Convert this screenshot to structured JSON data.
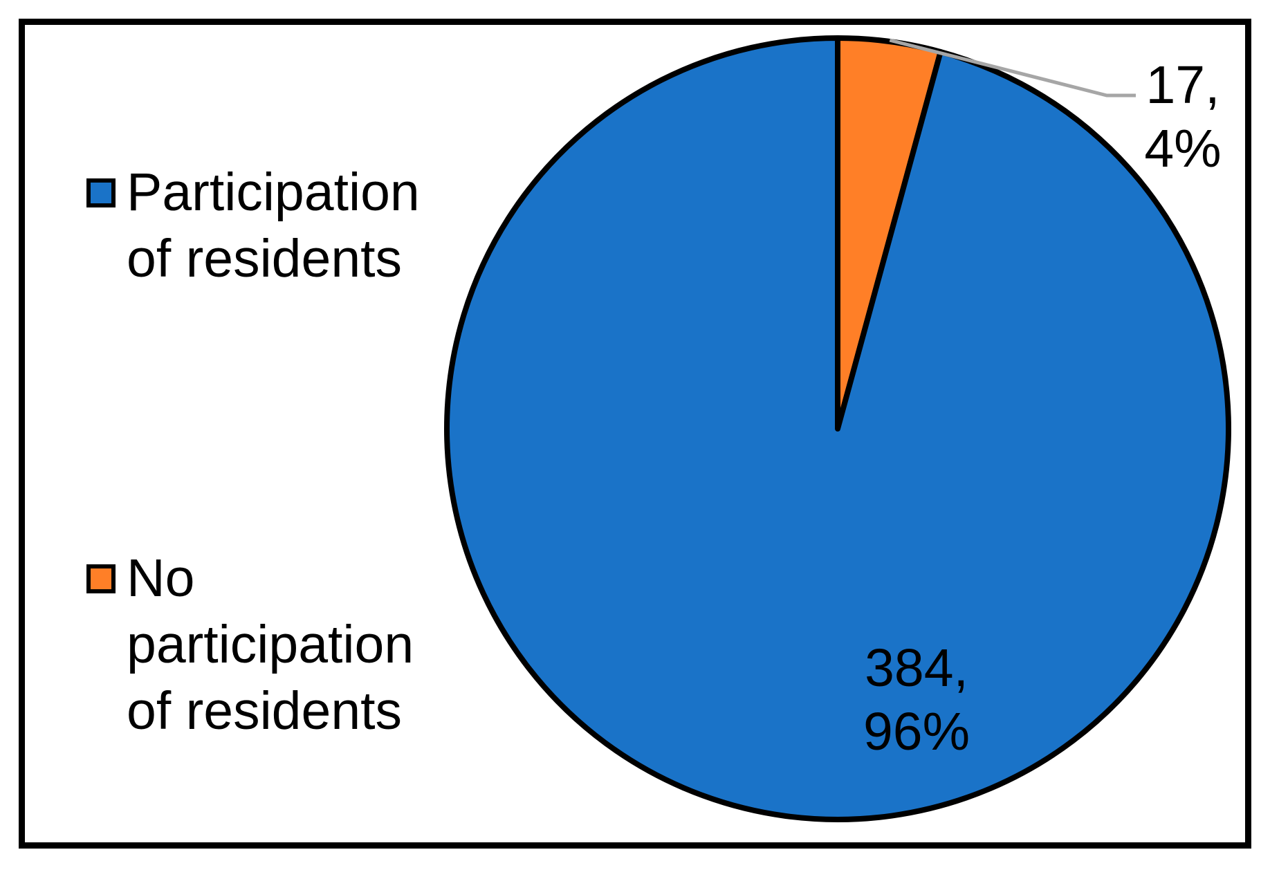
{
  "chart_data": {
    "type": "pie",
    "start_angle_deg": 0,
    "direction": "clockwise",
    "slices": [
      {
        "name": "No participation of residents",
        "value": 17,
        "percent": "4%",
        "label": "17,\n4%",
        "color": "#FF7F27"
      },
      {
        "name": "Participation of residents",
        "value": 384,
        "percent": "96%",
        "label": "384,\n96%",
        "color": "#1A73C8"
      }
    ],
    "legend": {
      "position": "left",
      "items": [
        {
          "label": "Participation\nof residents",
          "color": "#1A73C8"
        },
        {
          "label": "No\nparticipation\nof residents",
          "color": "#FF7F27"
        }
      ]
    },
    "leader_line_color": "#A6A6A6"
  }
}
